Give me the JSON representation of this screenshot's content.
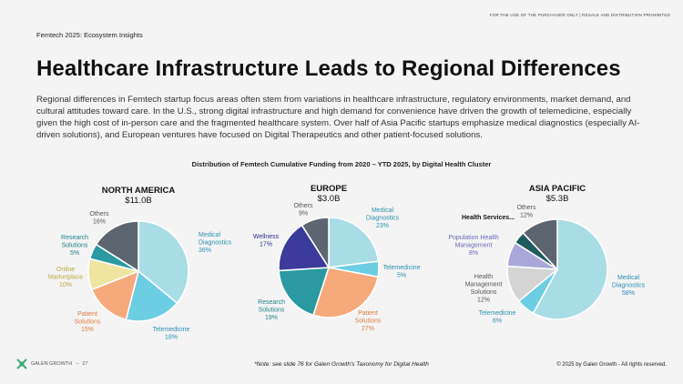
{
  "header": {
    "disclaimer": "FOR THE USE OF THE PURCHASER ONLY | RESALE AND DISTRIBUTION PROHIBITED",
    "kicker": "Femtech 2025: Ecosystem Insights",
    "title": "Healthcare Infrastructure Leads to Regional Differences",
    "body": "Regional differences in Femtech startup focus areas often stem from variations in healthcare infrastructure, regulatory environments, market demand, and cultural attitudes toward care. In the U.S., strong digital infrastructure and high demand for convenience have driven the growth of telemedicine, especially given the high cost of in-person care and the fragmented healthcare system. Over half of Asia Pacific startups emphasize medical diagnostics (especially AI-driven solutions), and European ventures have focused on Digital Therapeutics and other patient-focused solutions."
  },
  "footer": {
    "brand": "GALEN GROWTH",
    "page": "27",
    "note": "*Note: see slide 76 for Galen Growth's Taxonomy for Digital Health",
    "copyright": "© 2025 by Galen Growth - All rights reserved."
  },
  "colors": {
    "medical_diagnostics": "#a9dde6",
    "telemedicine": "#6ccde3",
    "patient_solutions": "#f6a97a",
    "online_marketplace": "#efe4a0",
    "research_solutions": "#2a99a2",
    "others": "#5d6670",
    "wellness": "#3c3b9b",
    "health_management": "#d4d4d4",
    "population_health": "#a9a7d9",
    "health_services": "#1f5a5e"
  },
  "chart_data": {
    "title": "Distribution of Femtech Cumulative Funding from 2020 – YTD 2025, by Digital Health Cluster",
    "type": "pie",
    "charts": [
      {
        "region": "NORTH AMERICA",
        "total": "$11.0B",
        "slices": [
          {
            "name": "Medical Diagnostics",
            "value": 36
          },
          {
            "name": "Telemedicine",
            "value": 18
          },
          {
            "name": "Patient Solutions",
            "value": 15
          },
          {
            "name": "Online Marketplace",
            "value": 10
          },
          {
            "name": "Research Solutions",
            "value": 5
          },
          {
            "name": "Others",
            "value": 16
          }
        ]
      },
      {
        "region": "EUROPE",
        "total": "$3.0B",
        "slices": [
          {
            "name": "Medical Diagnostics",
            "value": 23
          },
          {
            "name": "Telemedicine",
            "value": 5
          },
          {
            "name": "Patient Solutions",
            "value": 27
          },
          {
            "name": "Research Solutions",
            "value": 19
          },
          {
            "name": "Wellness",
            "value": 17
          },
          {
            "name": "Others",
            "value": 9
          }
        ]
      },
      {
        "region": "ASIA PACIFIC",
        "total": "$5.3B",
        "slices": [
          {
            "name": "Medical Diagnostics",
            "value": 58
          },
          {
            "name": "Telemedicine",
            "value": 6
          },
          {
            "name": "Health Management Solutions",
            "value": 12
          },
          {
            "name": "Population Health Management",
            "value": 8
          },
          {
            "name": "Health Services...",
            "value": 4
          },
          {
            "name": "Others",
            "value": 12
          }
        ]
      }
    ]
  }
}
